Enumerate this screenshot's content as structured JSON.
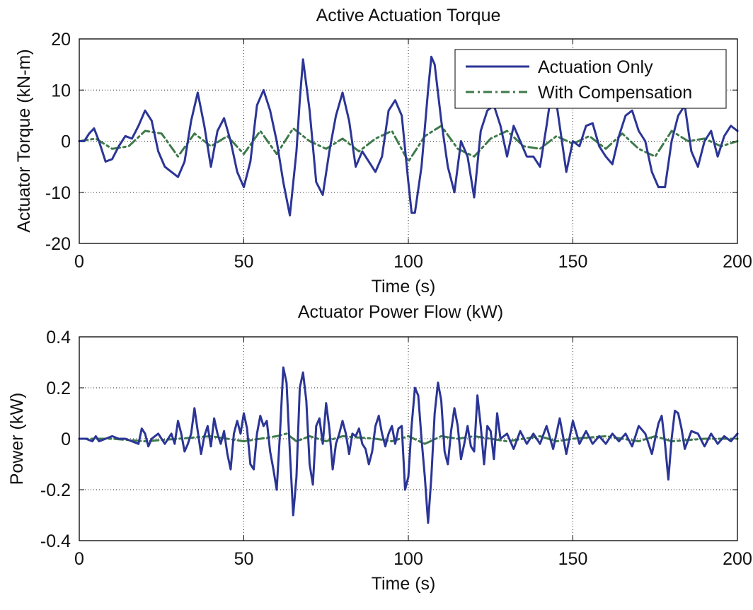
{
  "chart_data": [
    {
      "type": "line",
      "title": "Active Actuation Torque",
      "xlabel": "Time (s)",
      "ylabel": "Actuator Torque (kN-m)",
      "xlim": [
        0,
        200
      ],
      "ylim": [
        -20,
        20
      ],
      "xticks": [
        0,
        50,
        100,
        150,
        200
      ],
      "yticks": [
        -20,
        -10,
        0,
        10,
        20
      ],
      "xtick_labels": [
        "0",
        "50",
        "100",
        "150",
        "200"
      ],
      "ytick_labels": [
        "-20",
        "-10",
        "0",
        "10",
        "20"
      ],
      "grid": true,
      "legend_position": "top-right",
      "legend": [
        "Actuation Only",
        "With Compensation"
      ],
      "colors": {
        "actuation": "#2b3596",
        "compensation": "#3e7a4a"
      },
      "series": [
        {
          "name": "Actuation Only",
          "style": "solid",
          "x": [
            0,
            1.5,
            3,
            4.5,
            6,
            8,
            10,
            12,
            14,
            16,
            18,
            20,
            22,
            24,
            26,
            28,
            30,
            32,
            34,
            36,
            38,
            40,
            42,
            44,
            46,
            48,
            50,
            52,
            54,
            56,
            58,
            60,
            62,
            64,
            66,
            67,
            68,
            70,
            72,
            74,
            76,
            78,
            80,
            82,
            84,
            86,
            88,
            90,
            92,
            94,
            96,
            98,
            100,
            101,
            102,
            104,
            106,
            107,
            108,
            110,
            112,
            114,
            116,
            118,
            120,
            122,
            124,
            126,
            128,
            130,
            132,
            134,
            136,
            138,
            140,
            142,
            144,
            146,
            148,
            150,
            152,
            154,
            156,
            158,
            160,
            162,
            164,
            166,
            168,
            170,
            172,
            174,
            176,
            178,
            180,
            182,
            184,
            186,
            188,
            190,
            192,
            194,
            196,
            198,
            200
          ],
          "y": [
            0,
            0,
            1.5,
            2.5,
            0,
            -4,
            -3.5,
            -1,
            1,
            0.5,
            3,
            6,
            4,
            -2,
            -5,
            -6,
            -7,
            -4,
            4,
            9.5,
            3,
            -5,
            2,
            4.5,
            0,
            -6,
            -9,
            -4,
            7,
            10,
            6,
            0,
            -8,
            -14.5,
            -2,
            8,
            16,
            6,
            -8,
            -10.5,
            -2,
            5,
            9.5,
            4,
            -5,
            -2,
            -4,
            -6,
            -3,
            6,
            8,
            5,
            -8,
            -14,
            -14,
            -5,
            10,
            16.5,
            15,
            4,
            -5,
            -10,
            0,
            -3,
            -11,
            2,
            6,
            7,
            3,
            -3,
            3,
            0,
            -3,
            -3,
            -5,
            3,
            12,
            3,
            -6,
            0,
            -1,
            3,
            3.5,
            -1,
            -3,
            -4.5,
            1,
            5,
            6,
            2,
            0,
            -6,
            -9,
            -9,
            0,
            5,
            7,
            -2,
            -5,
            0,
            2,
            -3,
            1,
            3,
            2
          ]
        },
        {
          "name": "With Compensation",
          "style": "dash-dot",
          "x": [
            0,
            5,
            10,
            15,
            20,
            25,
            30,
            35,
            40,
            45,
            50,
            55,
            60,
            65,
            70,
            75,
            80,
            85,
            90,
            95,
            100,
            105,
            110,
            115,
            120,
            125,
            130,
            135,
            140,
            145,
            150,
            155,
            160,
            165,
            170,
            175,
            180,
            185,
            190,
            195,
            200
          ],
          "y": [
            0,
            0.5,
            -1.5,
            -1,
            2,
            1.5,
            -3,
            1.5,
            -1,
            1,
            -2.5,
            2,
            -2.5,
            2.5,
            0,
            -1.5,
            0.5,
            -2,
            0.5,
            2,
            -4,
            1,
            3,
            -1.5,
            -3,
            0.5,
            2,
            -1,
            -1.5,
            1,
            -0.5,
            1,
            -1.5,
            1.5,
            -1.5,
            -3,
            2,
            0,
            0.5,
            -1,
            0
          ]
        }
      ]
    },
    {
      "type": "line",
      "title": "Actuator Power Flow (kW)",
      "xlabel": "Time (s)",
      "ylabel": "Power (kW)",
      "xlim": [
        0,
        200
      ],
      "ylim": [
        -0.4,
        0.4
      ],
      "xticks": [
        0,
        50,
        100,
        150,
        200
      ],
      "yticks": [
        -0.4,
        -0.2,
        0,
        0.2,
        0.4
      ],
      "xtick_labels": [
        "0",
        "50",
        "100",
        "150",
        "200"
      ],
      "ytick_labels": [
        "-0.4",
        "-0.2",
        "0",
        "0.2",
        "0.4"
      ],
      "grid": true,
      "colors": {
        "actuation": "#2b3596",
        "compensation": "#3e7a4a"
      },
      "series": [
        {
          "style": "solid",
          "x": [
            0,
            2,
            4,
            5,
            6,
            8,
            10,
            12,
            14,
            16,
            18,
            19,
            20,
            21,
            22,
            24,
            26,
            28,
            29,
            30,
            31,
            32,
            33,
            34,
            35,
            36,
            37,
            38,
            39,
            40,
            41,
            42,
            43,
            44,
            45,
            46,
            47,
            48,
            49,
            50,
            51,
            52,
            53,
            54,
            55,
            56,
            57,
            58,
            59,
            60,
            61,
            62,
            63,
            64,
            65,
            66,
            67,
            68,
            69,
            70,
            71,
            72,
            73,
            74,
            75,
            76,
            77,
            78,
            79,
            80,
            81,
            82,
            83,
            84,
            85,
            86,
            87,
            88,
            89,
            90,
            91,
            92,
            93,
            94,
            95,
            96,
            97,
            98,
            99,
            100,
            101,
            102,
            103,
            104,
            105,
            106,
            107,
            108,
            109,
            110,
            111,
            112,
            113,
            114,
            115,
            116,
            117,
            118,
            119,
            120,
            121,
            122,
            123,
            124,
            125,
            126,
            127,
            128,
            130,
            132,
            134,
            136,
            138,
            140,
            142,
            144,
            146,
            148,
            150,
            152,
            154,
            156,
            158,
            160,
            162,
            164,
            166,
            168,
            170,
            172,
            174,
            176,
            177,
            178,
            179,
            180,
            181,
            182,
            183,
            184,
            186,
            188,
            190,
            192,
            194,
            196,
            198,
            200
          ],
          "y": [
            0,
            0,
            -0.01,
            0.01,
            -0.01,
            0,
            0.01,
            0,
            0,
            -0.01,
            -0.02,
            0.04,
            0.02,
            -0.03,
            0,
            0.02,
            -0.02,
            0.02,
            -0.02,
            0.07,
            0.02,
            -0.05,
            -0.02,
            0.02,
            0.12,
            0.03,
            -0.06,
            0.01,
            0.05,
            -0.03,
            0.08,
            0.02,
            -0.02,
            0.03,
            -0.06,
            -0.12,
            0.02,
            0.07,
            0.02,
            0.1,
            0.04,
            -0.1,
            -0.12,
            0.02,
            0.09,
            0.05,
            0.07,
            -0.05,
            -0.12,
            -0.2,
            0.02,
            0.28,
            0.22,
            -0.05,
            -0.3,
            -0.15,
            0.2,
            0.26,
            0.15,
            -0.1,
            -0.18,
            0.05,
            0.08,
            -0.02,
            0.14,
            0.04,
            -0.12,
            -0.02,
            0.02,
            0.07,
            0.02,
            -0.06,
            0.02,
            0.01,
            0.04,
            -0.02,
            -0.04,
            -0.1,
            -0.05,
            0.05,
            0.09,
            0.02,
            -0.03,
            0.02,
            0.05,
            -0.02,
            0.04,
            0.05,
            -0.2,
            -0.15,
            0.05,
            0.2,
            0.17,
            0,
            -0.15,
            -0.33,
            -0.15,
            0.1,
            0.22,
            0.15,
            -0.05,
            -0.1,
            0.03,
            0.12,
            0.05,
            -0.08,
            -0.02,
            0.05,
            -0.03,
            -0.05,
            0.17,
            0.05,
            -0.1,
            0.05,
            0.03,
            -0.08,
            0.1,
            0,
            0.02,
            -0.04,
            0.03,
            -0.02,
            0.02,
            -0.02,
            0.05,
            -0.04,
            0.08,
            -0.06,
            0.07,
            -0.02,
            0.03,
            -0.02,
            0.01,
            -0.02,
            0.02,
            -0.01,
            0.02,
            -0.03,
            0.05,
            0.02,
            -0.06,
            0.06,
            0.09,
            -0.02,
            -0.16,
            0,
            0.11,
            0.1,
            0.04,
            -0.04,
            0.03,
            0.02,
            -0.03,
            0.02,
            -0.02,
            0.01,
            -0.01,
            0.02
          ]
        },
        {
          "style": "dash-dot",
          "x": [
            0,
            10,
            20,
            30,
            40,
            50,
            60,
            63,
            66,
            70,
            75,
            80,
            90,
            95,
            100,
            105,
            110,
            115,
            120,
            130,
            140,
            145,
            150,
            160,
            170,
            175,
            180,
            190,
            200
          ],
          "y": [
            0,
            0,
            -0.01,
            0,
            0.01,
            -0.01,
            0.01,
            0.02,
            -0.01,
            0.01,
            -0.01,
            0.01,
            0,
            -0.01,
            0.01,
            -0.02,
            0.01,
            0,
            0.01,
            -0.01,
            0.01,
            -0.01,
            0,
            0.01,
            -0.01,
            0.01,
            -0.01,
            0,
            0
          ]
        }
      ]
    }
  ]
}
